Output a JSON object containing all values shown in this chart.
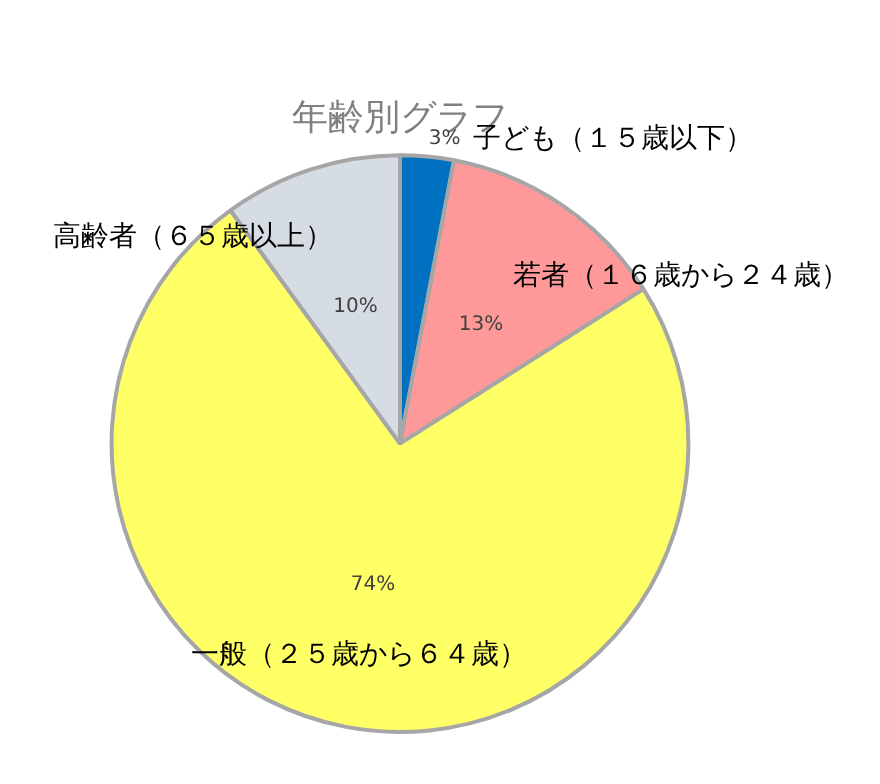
{
  "chart_data": {
    "type": "pie",
    "title": "年齢別グラフ",
    "categories": [
      "子ども（１５歳以下）",
      "若者（１６歳から２４歳）",
      "一般（２５歳から６４歳）",
      "高齢者（６５歳以上）"
    ],
    "values": [
      3,
      13,
      74,
      10
    ],
    "colors": [
      "#0070c0",
      "#ff9999",
      "#ffff66",
      "#d6dce4"
    ],
    "value_labels": [
      "3%",
      "13%",
      "74%",
      "10%"
    ],
    "legend": false
  }
}
